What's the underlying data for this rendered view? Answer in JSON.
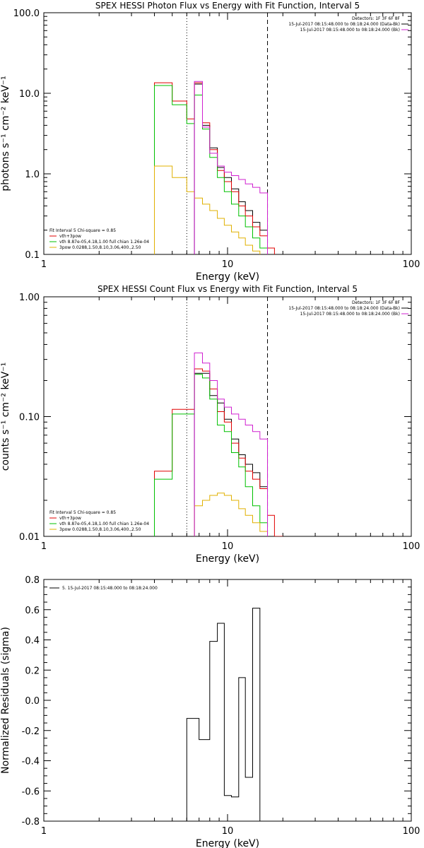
{
  "chart_data": [
    {
      "type": "line",
      "title": "SPEX HESSI Photon Flux vs Energy with Fit Function, Interval 5",
      "xlabel": "Energy (keV)",
      "ylabel": "photons s⁻¹ cm⁻² keV⁻¹",
      "xscale": "log",
      "yscale": "log",
      "xlim": [
        1,
        100
      ],
      "ylim": [
        0.1,
        100
      ],
      "xticks": [
        "1",
        "10",
        "100"
      ],
      "yticks": [
        "0.1",
        "1.0",
        "10.0",
        "100.0"
      ],
      "vlines": [
        {
          "x": 6.0,
          "style": "dotted"
        },
        {
          "x": 16.5,
          "style": "dashed"
        }
      ],
      "legend_top": [
        {
          "text": "Detectors: 1F 3F 6F 8F",
          "color": "#000000"
        },
        {
          "text": "15-Jul-2017 08:15:48.000 to 08:18:24.000 (Data-Bk)",
          "color": "#000000"
        },
        {
          "text": "15-Jul-2017 08:15:48.000 to 08:18:24.000 (Bk)",
          "color": "#d020d0"
        }
      ],
      "legend_bottom": [
        {
          "text": "Fit Interval 5   Chi-square = 0.85",
          "color": "#000000"
        },
        {
          "text": "vth+3pow",
          "color": "#e00000"
        },
        {
          "text": "vth 8.87e-05,4.18,1.00  full chian 1.26e-04",
          "color": "#00c000"
        },
        {
          "text": "3pow 0.0288,1.50,8.10,3.06,400.,2.50",
          "color": "#e0b000"
        }
      ],
      "edges": [
        4.0,
        5.0,
        6.0,
        6.6,
        7.3,
        8.0,
        8.8,
        9.6,
        10.5,
        11.5,
        12.5,
        13.7,
        15.0,
        16.5,
        18.0
      ],
      "series": [
        {
          "color": "#000000",
          "values": [
            null,
            null,
            null,
            13.0,
            4.0,
            2.1,
            1.2,
            0.9,
            0.65,
            0.45,
            0.35,
            0.25,
            0.2,
            null
          ]
        },
        {
          "color": "#e00000",
          "values": [
            13.5,
            8.0,
            4.8,
            13.5,
            4.3,
            2.0,
            1.1,
            0.8,
            0.6,
            0.4,
            0.3,
            0.22,
            0.17,
            0.12
          ]
        },
        {
          "color": "#00c000",
          "values": [
            12.5,
            7.2,
            4.2,
            9.5,
            3.6,
            1.6,
            0.9,
            0.6,
            0.42,
            0.3,
            0.22,
            0.16,
            0.12,
            null
          ]
        },
        {
          "color": "#e0b000",
          "values": [
            1.25,
            0.9,
            0.6,
            0.5,
            0.42,
            0.35,
            0.28,
            0.23,
            0.19,
            0.16,
            0.13,
            0.11,
            null,
            null
          ]
        },
        {
          "color": "#d020d0",
          "values": [
            null,
            null,
            null,
            14.0,
            3.8,
            1.8,
            1.25,
            1.05,
            0.95,
            0.85,
            0.75,
            0.68,
            0.58,
            null
          ]
        }
      ],
      "initial_markers": [
        {
          "x": 4.0,
          "color": "#00c000"
        },
        {
          "x": 4.0,
          "color": "#e0b000"
        },
        {
          "x": 6.0,
          "color": "#d020d0"
        }
      ]
    },
    {
      "type": "line",
      "title": "SPEX HESSI Count Flux vs Energy with Fit Function, Interval 5",
      "xlabel": "Energy (keV)",
      "ylabel": "counts s⁻¹ cm⁻² keV⁻¹",
      "xscale": "log",
      "yscale": "log",
      "xlim": [
        1,
        100
      ],
      "ylim": [
        0.01,
        1
      ],
      "xticks": [
        "1",
        "10",
        "100"
      ],
      "yticks": [
        "0.01",
        "0.10",
        "1.00"
      ],
      "vlines": [
        {
          "x": 6.0,
          "style": "dotted"
        },
        {
          "x": 16.5,
          "style": "dashed"
        }
      ],
      "legend_top": [
        {
          "text": "Detectors: 1F 3F 6F 8F",
          "color": "#000000"
        },
        {
          "text": "15-Jul-2017 08:15:48.000 to 08:18:24.000 (Data-Bk)",
          "color": "#000000"
        },
        {
          "text": "15-Jul-2017 08:15:48.000 to 08:18:24.000 (Bk)",
          "color": "#d020d0"
        }
      ],
      "legend_bottom": [
        {
          "text": "Fit Interval 5   Chi-square = 0.85",
          "color": "#000000"
        },
        {
          "text": "vth+3pow",
          "color": "#e00000"
        },
        {
          "text": "vth 8.87e-05,4.18,1.00  full chian 1.26e-04",
          "color": "#00c000"
        },
        {
          "text": "3pow 0.0288,1.50,8.10,3.06,400.,2.50",
          "color": "#e0b000"
        }
      ],
      "edges": [
        4.0,
        5.0,
        6.0,
        6.6,
        7.3,
        8.0,
        8.8,
        9.6,
        10.5,
        11.5,
        12.5,
        13.7,
        15.0,
        16.5,
        18.0,
        20.0
      ],
      "series": [
        {
          "color": "#000000",
          "values": [
            null,
            null,
            null,
            0.23,
            0.23,
            0.15,
            0.13,
            0.095,
            0.065,
            0.048,
            0.04,
            0.034,
            0.026,
            null,
            null
          ]
        },
        {
          "color": "#e00000",
          "values": [
            0.035,
            0.115,
            0.115,
            0.25,
            0.24,
            0.17,
            0.11,
            0.09,
            0.06,
            0.045,
            0.035,
            0.03,
            0.025,
            0.015,
            0.01
          ]
        },
        {
          "color": "#00c000",
          "values": [
            0.03,
            0.105,
            0.105,
            0.225,
            0.21,
            0.14,
            0.085,
            0.075,
            0.05,
            0.038,
            0.026,
            0.018,
            0.013,
            null,
            null
          ]
        },
        {
          "color": "#e0b000",
          "values": [
            null,
            null,
            null,
            0.018,
            0.02,
            0.022,
            0.023,
            0.022,
            0.02,
            0.017,
            0.015,
            0.013,
            0.011,
            null,
            null
          ]
        },
        {
          "color": "#d020d0",
          "values": [
            null,
            null,
            null,
            0.34,
            0.28,
            0.2,
            0.14,
            0.12,
            0.105,
            0.095,
            0.085,
            0.075,
            0.065,
            null,
            null
          ]
        }
      ],
      "initial_markers": [
        {
          "x": 4.0,
          "color": "#00c000"
        },
        {
          "x": 6.0,
          "color": "#e0b000"
        },
        {
          "x": 6.0,
          "color": "#d020d0"
        }
      ]
    },
    {
      "type": "line",
      "title": "",
      "xlabel": "Energy (keV)",
      "ylabel": "Normalized Residuals (sigma)",
      "xscale": "log",
      "yscale": "linear",
      "xlim": [
        1,
        100
      ],
      "ylim": [
        -0.8,
        0.8
      ],
      "xticks": [
        "1",
        "10",
        "100"
      ],
      "yticks": [
        "-0.8",
        "-0.6",
        "-0.4",
        "-0.2",
        "0.0",
        "0.2",
        "0.4",
        "0.6",
        "0.8"
      ],
      "legend_top": [
        {
          "text": "5. 15-Jul-2017 08:15:48.000 to 08:18:24.000",
          "color": "#000000"
        }
      ],
      "edges": [
        6.0,
        7.0,
        8.0,
        8.8,
        9.6,
        10.5,
        11.5,
        12.5,
        13.7,
        15.0,
        16.5
      ],
      "series": [
        {
          "color": "#000000",
          "values": [
            -0.12,
            -0.26,
            0.39,
            0.51,
            -0.63,
            -0.64,
            0.15,
            -0.51,
            0.61,
            null
          ]
        }
      ]
    }
  ]
}
